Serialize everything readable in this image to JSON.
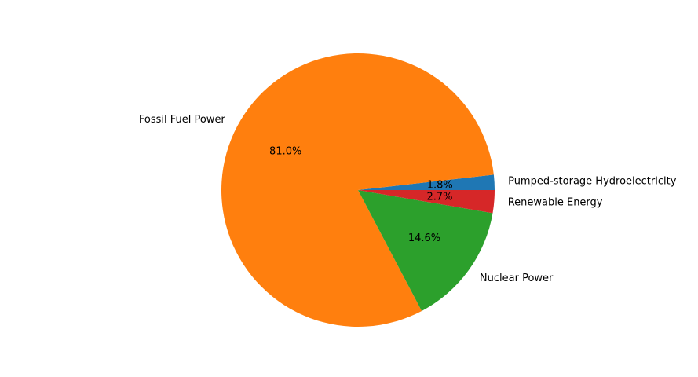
{
  "chart_data": {
    "type": "pie",
    "title": "",
    "start_angle_deg": 0,
    "direction": "counterclockwise",
    "slices": [
      {
        "label": "Pumped-storage Hydroelectricity",
        "value": 1.8,
        "pct_label": "1.8%",
        "color": "#1f77b4"
      },
      {
        "label": "Fossil Fuel Power",
        "value": 81.0,
        "pct_label": "81.0%",
        "color": "#ff7f0e"
      },
      {
        "label": "Nuclear Power",
        "value": 14.6,
        "pct_label": "14.6%",
        "color": "#2ca02c"
      },
      {
        "label": "Renewable Energy",
        "value": 2.7,
        "pct_label": "2.7%",
        "color": "#d62728"
      }
    ]
  }
}
